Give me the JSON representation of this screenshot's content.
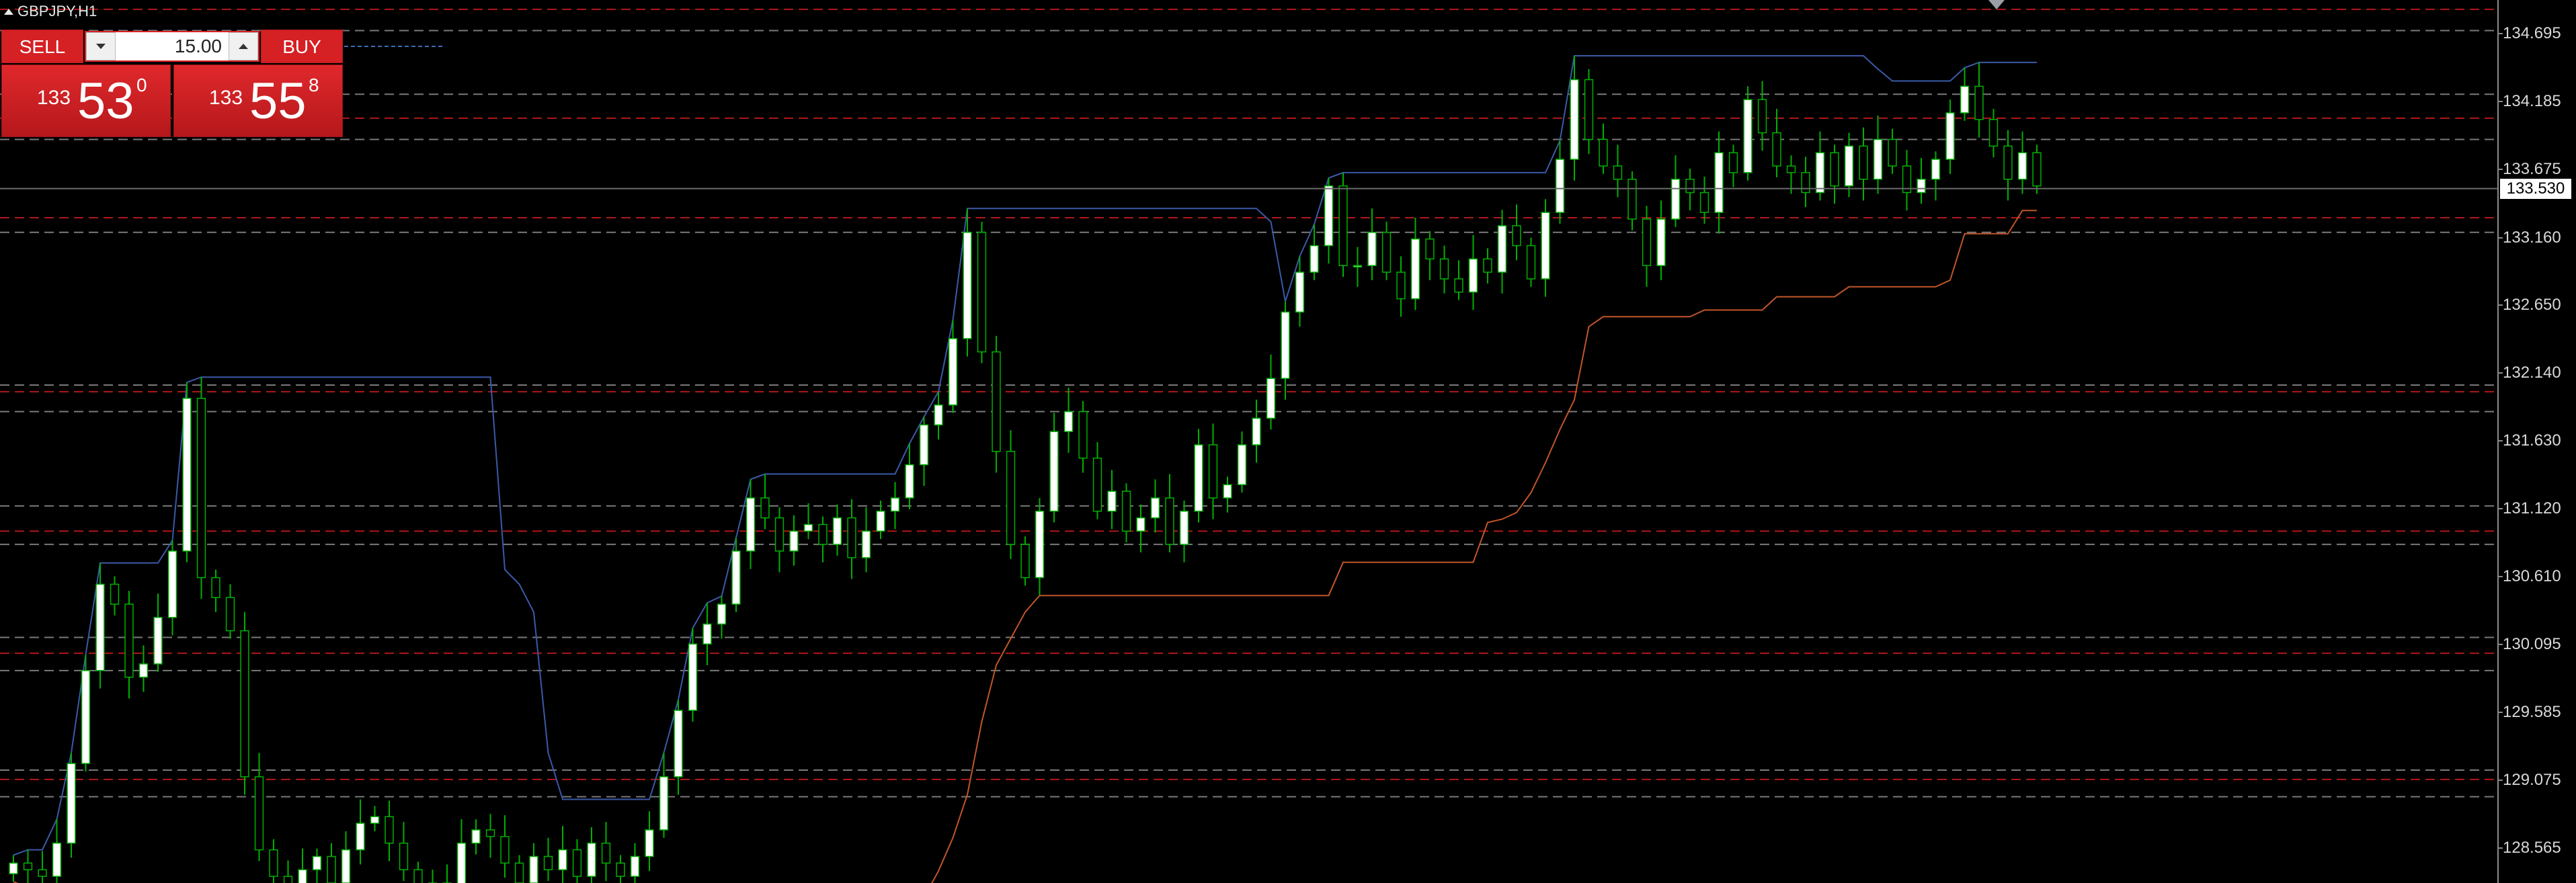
{
  "window": {
    "title": "GBPJPY,H1"
  },
  "trade_panel": {
    "sell_label": "SELL",
    "buy_label": "BUY",
    "lot_value": "15.00",
    "sell_price": {
      "big": "133",
      "pips": "53",
      "fraction": "0"
    },
    "buy_price": {
      "big": "133",
      "pips": "55",
      "fraction": "8"
    }
  },
  "price_axis": {
    "ticks": [
      "134.695",
      "134.185",
      "133.675",
      "133.160",
      "132.650",
      "132.140",
      "131.630",
      "131.120",
      "130.610",
      "130.095",
      "129.585",
      "129.075",
      "128.565"
    ],
    "current_price": "133.530"
  },
  "colors": {
    "background": "#000000",
    "bull_candle": "#ffffff",
    "bear_candle": "#000000",
    "wick": "#00b000",
    "upper_channel": "#3a5aa8",
    "lower_channel": "#c0562a",
    "level_red": "#b01818",
    "level_gray": "#7a7a7a",
    "sell_buy_panel": "#d52024"
  },
  "icons": {
    "collapse": "triangle-up-icon",
    "lot_decrease": "triangle-down-icon",
    "lot_increase": "triangle-up-icon",
    "scroll_marker": "triangle-down-icon"
  },
  "chart_data": {
    "type": "candlestick",
    "symbol": "GBPJPY",
    "timeframe": "H1",
    "ylim": [
      128.3,
      134.95
    ],
    "y_ticks": [
      134.695,
      134.185,
      133.675,
      133.16,
      132.65,
      132.14,
      131.63,
      131.12,
      130.61,
      130.095,
      129.585,
      129.075,
      128.565
    ],
    "current_price": 133.53,
    "grid": false,
    "horizontal_levels": {
      "red_dashed": [
        134.88,
        134.06,
        133.31,
        132.0,
        130.95,
        130.03,
        129.08
      ],
      "gray_dashed": [
        134.72,
        134.24,
        133.9,
        133.2,
        132.05,
        131.85,
        131.14,
        130.85,
        130.15,
        129.9,
        129.15,
        128.95
      ]
    },
    "close_path": [
      128.45,
      128.4,
      128.35,
      128.6,
      129.2,
      129.9,
      130.55,
      130.4,
      129.85,
      129.95,
      130.3,
      130.8,
      131.95,
      130.6,
      130.45,
      130.2,
      129.1,
      128.55,
      128.35,
      128.2,
      128.4,
      128.5,
      128.3,
      128.55,
      128.75,
      128.8,
      128.6,
      128.4,
      128.2,
      128.3,
      128.25,
      128.6,
      128.7,
      128.65,
      128.45,
      128.3,
      128.5,
      128.4,
      128.55,
      128.35,
      128.6,
      128.45,
      128.35,
      128.5,
      128.7,
      129.1,
      129.6,
      130.1,
      130.25,
      130.4,
      130.8,
      131.2,
      131.05,
      130.8,
      130.95,
      131.0,
      130.85,
      131.05,
      130.75,
      130.95,
      131.1,
      131.2,
      131.45,
      131.75,
      131.9,
      132.4,
      133.2,
      132.3,
      131.55,
      130.85,
      130.6,
      131.1,
      131.7,
      131.85,
      131.5,
      131.1,
      131.25,
      130.95,
      131.05,
      131.2,
      130.85,
      131.1,
      131.6,
      131.2,
      131.3,
      131.6,
      131.8,
      132.1,
      132.6,
      132.9,
      133.1,
      133.55,
      132.95,
      132.95,
      133.2,
      132.9,
      132.7,
      133.15,
      133.0,
      132.85,
      132.75,
      133.0,
      132.9,
      133.25,
      133.1,
      132.85,
      133.35,
      133.75,
      134.35,
      133.9,
      133.7,
      133.6,
      133.3,
      132.95,
      133.3,
      133.6,
      133.5,
      133.35,
      133.8,
      133.65,
      134.2,
      133.95,
      133.7,
      133.65,
      133.5,
      133.8,
      133.55,
      133.85,
      133.6,
      133.9,
      133.7,
      133.5,
      133.6,
      133.75,
      134.1,
      134.3,
      134.05,
      133.85,
      133.6,
      133.8,
      133.55
    ]
  }
}
